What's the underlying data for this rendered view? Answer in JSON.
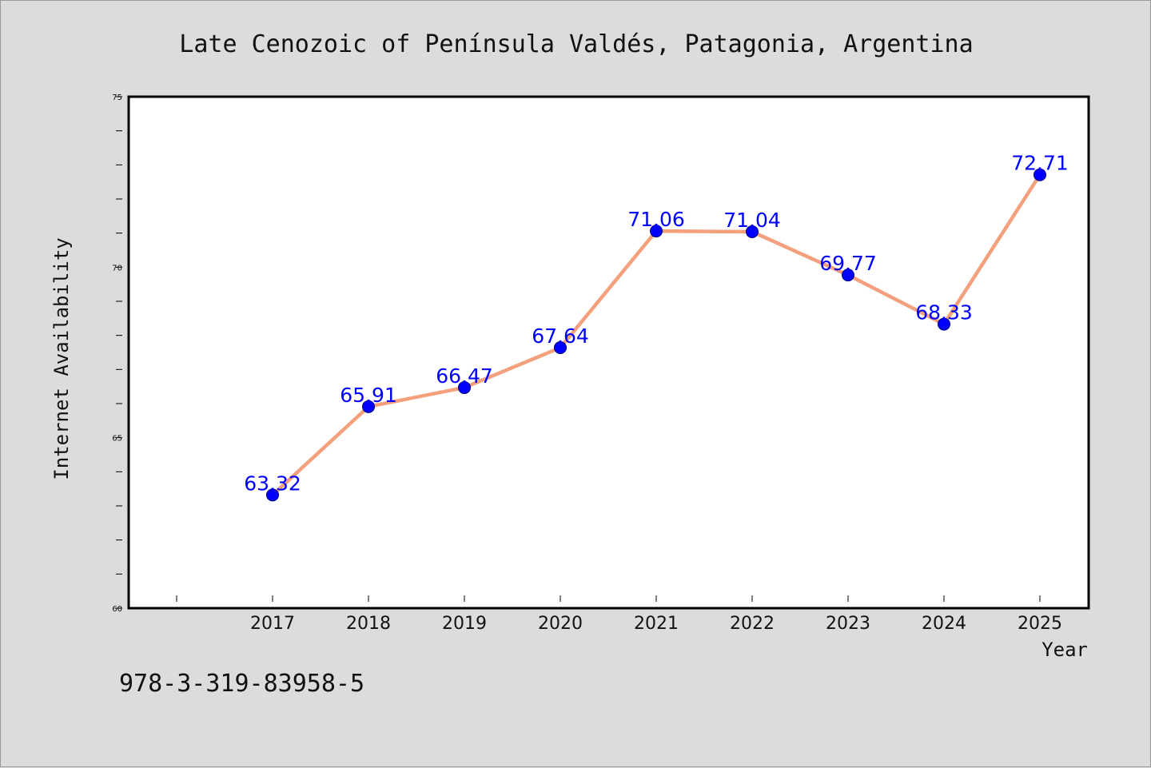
{
  "chart_data": {
    "type": "line",
    "title": "Late Cenozoic of Península Valdés, Patagonia, Argentina",
    "xlabel": "Year",
    "ylabel": "Internet Availability",
    "categories": [
      "2017",
      "2018",
      "2019",
      "2020",
      "2021",
      "2022",
      "2023",
      "2024",
      "2025"
    ],
    "series": [
      {
        "values": [
          63.32,
          65.91,
          66.47,
          67.64,
          71.06,
          71.04,
          69.77,
          68.33,
          72.71
        ],
        "labels": [
          "63.32",
          "65.91",
          "66.47",
          "67.64",
          "71.06",
          "71.04",
          "69.77",
          "68.33",
          "72.71"
        ]
      }
    ],
    "ylim": [
      60,
      75
    ],
    "yticks": [
      "60",
      "65",
      "70",
      "75"
    ],
    "grid": false,
    "legend": "none",
    "colors": {
      "line": "#f4a07c",
      "marker": "#0000ff",
      "marker_edge": "#000080",
      "data_label": "#0000ff",
      "plot_background": "#ffffff",
      "page_background": "#dcdcdc"
    }
  },
  "footer": {
    "isbn": "978-3-319-83958-5"
  }
}
